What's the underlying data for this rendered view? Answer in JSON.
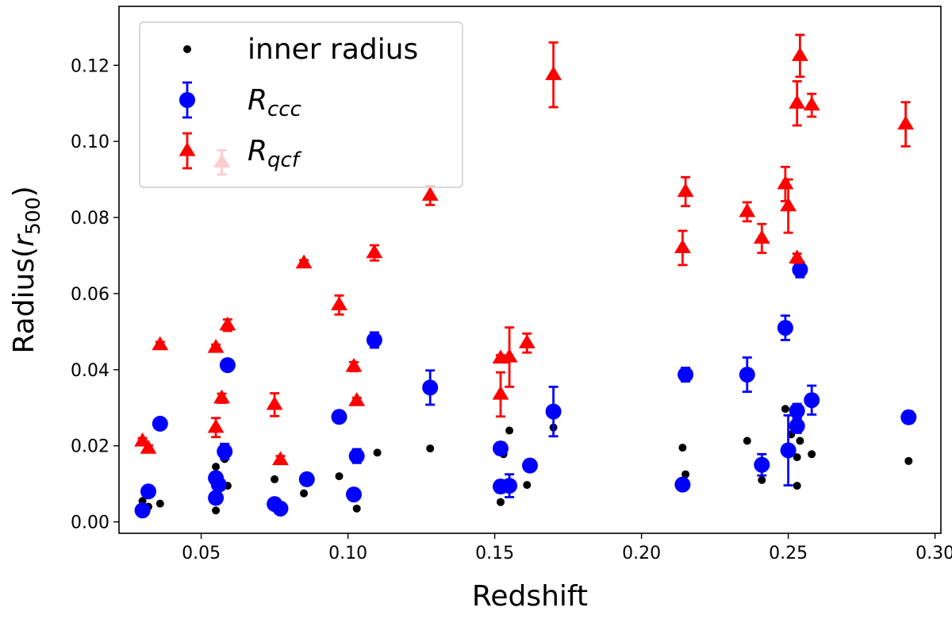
{
  "chart_data": {
    "type": "scatter",
    "xlabel": "Redshift",
    "ylabel": "Radius(r500)",
    "ylabel_parts": {
      "main": "Radius(",
      "var": "r",
      "sub": "500",
      "close": ")"
    },
    "xlim": [
      0.022,
      0.302
    ],
    "ylim": [
      -0.003,
      0.1355
    ],
    "xticks": [
      "0.05",
      "0.10",
      "0.15",
      "0.20",
      "0.25",
      "0.30"
    ],
    "xtick_values": [
      0.05,
      0.1,
      0.15,
      0.2,
      0.25,
      0.3
    ],
    "yticks": [
      "0.00",
      "0.02",
      "0.04",
      "0.06",
      "0.08",
      "0.10",
      "0.12"
    ],
    "ytick_values": [
      0.0,
      0.02,
      0.04,
      0.06,
      0.08,
      0.1,
      0.12
    ],
    "legend_position": "top-left",
    "grid": false,
    "series": [
      {
        "name": "inner radius",
        "marker": "dot",
        "color": "#000000",
        "points": [
          [
            0.03,
            0.0055
          ],
          [
            0.032,
            0.004
          ],
          [
            0.036,
            0.0048
          ],
          [
            0.055,
            0.003
          ],
          [
            0.055,
            0.0145
          ],
          [
            0.057,
            0.009
          ],
          [
            0.058,
            0.0165
          ],
          [
            0.059,
            0.0095
          ],
          [
            0.075,
            0.0112
          ],
          [
            0.085,
            0.0075
          ],
          [
            0.097,
            0.012
          ],
          [
            0.103,
            0.0035
          ],
          [
            0.11,
            0.0182
          ],
          [
            0.128,
            0.0193
          ],
          [
            0.152,
            0.0052
          ],
          [
            0.153,
            0.0178
          ],
          [
            0.155,
            0.024
          ],
          [
            0.161,
            0.0097
          ],
          [
            0.17,
            0.0248
          ],
          [
            0.214,
            0.0195
          ],
          [
            0.215,
            0.0125
          ],
          [
            0.236,
            0.0213
          ],
          [
            0.241,
            0.011
          ],
          [
            0.249,
            0.0297
          ],
          [
            0.251,
            0.023
          ],
          [
            0.253,
            0.017
          ],
          [
            0.253,
            0.0095
          ],
          [
            0.254,
            0.0213
          ],
          [
            0.258,
            0.0178
          ],
          [
            0.291,
            0.016
          ]
        ]
      },
      {
        "name": "R_ccc",
        "name_parts": {
          "var": "R",
          "sub": "ccc"
        },
        "marker": "circle",
        "color": "#0000ff",
        "points": [
          [
            0.03,
            0.003,
            0.001,
            0.001
          ],
          [
            0.032,
            0.008,
            0.001,
            0.001
          ],
          [
            0.036,
            0.0258,
            0.001,
            0.001
          ],
          [
            0.055,
            0.0115,
            0.0015,
            0.0015
          ],
          [
            0.055,
            0.0063,
            0.0012,
            0.0012
          ],
          [
            0.056,
            0.0098,
            0.001,
            0.001
          ],
          [
            0.058,
            0.0185,
            0.002,
            0.002
          ],
          [
            0.059,
            0.0412,
            0.001,
            0.001
          ],
          [
            0.075,
            0.0047,
            0.001,
            0.001
          ],
          [
            0.077,
            0.0035,
            0.001,
            0.001
          ],
          [
            0.086,
            0.0112,
            0.001,
            0.001
          ],
          [
            0.097,
            0.0276,
            0.001,
            0.001
          ],
          [
            0.102,
            0.0072,
            0.001,
            0.001
          ],
          [
            0.103,
            0.0173,
            0.0018,
            0.0018
          ],
          [
            0.109,
            0.0478,
            0.002,
            0.002
          ],
          [
            0.128,
            0.0353,
            0.0045,
            0.0045
          ],
          [
            0.152,
            0.0193,
            0.0015,
            0.0015
          ],
          [
            0.152,
            0.0093,
            0.0015,
            0.0015
          ],
          [
            0.155,
            0.0095,
            0.003,
            0.003
          ],
          [
            0.162,
            0.0148,
            0.001,
            0.001
          ],
          [
            0.17,
            0.029,
            0.0065,
            0.0065
          ],
          [
            0.214,
            0.0098,
            0.001,
            0.001
          ],
          [
            0.215,
            0.0387,
            0.0018,
            0.0018
          ],
          [
            0.236,
            0.0387,
            0.0045,
            0.0045
          ],
          [
            0.241,
            0.015,
            0.0028,
            0.0028
          ],
          [
            0.249,
            0.051,
            0.0032,
            0.0032
          ],
          [
            0.25,
            0.0188,
            0.0092,
            0.0092
          ],
          [
            0.253,
            0.0252,
            0.0018,
            0.0018
          ],
          [
            0.253,
            0.0292,
            0.0018,
            0.0018
          ],
          [
            0.254,
            0.0663,
            0.002,
            0.002
          ],
          [
            0.258,
            0.032,
            0.0038,
            0.0038
          ],
          [
            0.291,
            0.0275,
            0.0015,
            0.0015
          ]
        ]
      },
      {
        "name": "R_qcf",
        "name_parts": {
          "var": "R",
          "sub": "qcf"
        },
        "marker": "triangle",
        "color": "#ff0000",
        "points": [
          [
            0.03,
            0.0212,
            0.0008,
            0.0008
          ],
          [
            0.032,
            0.0193,
            0.0008,
            0.0008
          ],
          [
            0.036,
            0.0465,
            0.0008,
            0.0008
          ],
          [
            0.055,
            0.0458,
            0.0008,
            0.0008
          ],
          [
            0.055,
            0.0248,
            0.0025,
            0.0025
          ],
          [
            0.057,
            0.0325,
            0.0012,
            0.0012
          ],
          [
            0.057,
            0.0945,
            0.0032,
            0.0032
          ],
          [
            0.059,
            0.0517,
            0.0015,
            0.0015
          ],
          [
            0.075,
            0.0308,
            0.003,
            0.003
          ],
          [
            0.077,
            0.0163,
            0.001,
            0.001
          ],
          [
            0.085,
            0.068,
            0.0008,
            0.0008
          ],
          [
            0.097,
            0.057,
            0.0025,
            0.0025
          ],
          [
            0.102,
            0.0408,
            0.0012,
            0.0012
          ],
          [
            0.103,
            0.0318,
            0.0008,
            0.0008
          ],
          [
            0.109,
            0.0707,
            0.002,
            0.002
          ],
          [
            0.128,
            0.0858,
            0.0025,
            0.0025
          ],
          [
            0.152,
            0.043,
            0.0008,
            0.0008
          ],
          [
            0.152,
            0.0335,
            0.0058,
            0.0058
          ],
          [
            0.155,
            0.0433,
            0.0078,
            0.0078
          ],
          [
            0.161,
            0.047,
            0.0025,
            0.0025
          ],
          [
            0.17,
            0.1175,
            0.0085,
            0.0085
          ],
          [
            0.214,
            0.072,
            0.0045,
            0.0045
          ],
          [
            0.215,
            0.0868,
            0.0038,
            0.0038
          ],
          [
            0.236,
            0.0815,
            0.0025,
            0.0025
          ],
          [
            0.241,
            0.0745,
            0.0038,
            0.0038
          ],
          [
            0.249,
            0.0888,
            0.0045,
            0.0045
          ],
          [
            0.25,
            0.083,
            0.007,
            0.007
          ],
          [
            0.253,
            0.11,
            0.0058,
            0.0058
          ],
          [
            0.253,
            0.0693,
            0.0012,
            0.0012
          ],
          [
            0.254,
            0.1225,
            0.0055,
            0.0055
          ],
          [
            0.258,
            0.1095,
            0.003,
            0.003
          ],
          [
            0.29,
            0.1045,
            0.0058,
            0.0058
          ]
        ]
      }
    ]
  }
}
